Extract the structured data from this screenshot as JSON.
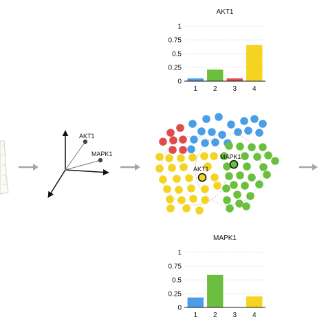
{
  "colors": {
    "blue": "#4a9ee8",
    "green": "#6ac03e",
    "red": "#e04b4b",
    "yellow": "#f5d321",
    "arrow": "#a6a6a6",
    "grid": "#bbbbbb"
  },
  "axes3d": {
    "point_a_label": "AKT1",
    "point_b_label": "MAPK1"
  },
  "scatter": {
    "label_akt1": "AKT1",
    "label_mapk1": "MAPK1"
  },
  "chart_data": [
    {
      "type": "bar",
      "title": "AKT1",
      "categories": [
        "1",
        "2",
        "3",
        "4"
      ],
      "values": [
        0.05,
        0.21,
        0.05,
        0.66
      ],
      "colors": [
        "#4a9ee8",
        "#6ac03e",
        "#e04b4b",
        "#f5d321"
      ],
      "yticks": [
        "0",
        "0.25",
        "0.5",
        "0.75",
        "1"
      ],
      "ylim": [
        0,
        1
      ],
      "grid": "dotted"
    },
    {
      "type": "bar",
      "title": "MAPK1",
      "categories": [
        "1",
        "2",
        "3",
        "4"
      ],
      "values": [
        0.18,
        0.59,
        0.0,
        0.2
      ],
      "colors": [
        "#4a9ee8",
        "#6ac03e",
        "#e04b4b",
        "#f5d321"
      ],
      "yticks": [
        "0",
        "0.25",
        "0.5",
        "0.75",
        "1"
      ],
      "ylim": [
        0,
        1
      ],
      "grid": "dotted"
    }
  ]
}
